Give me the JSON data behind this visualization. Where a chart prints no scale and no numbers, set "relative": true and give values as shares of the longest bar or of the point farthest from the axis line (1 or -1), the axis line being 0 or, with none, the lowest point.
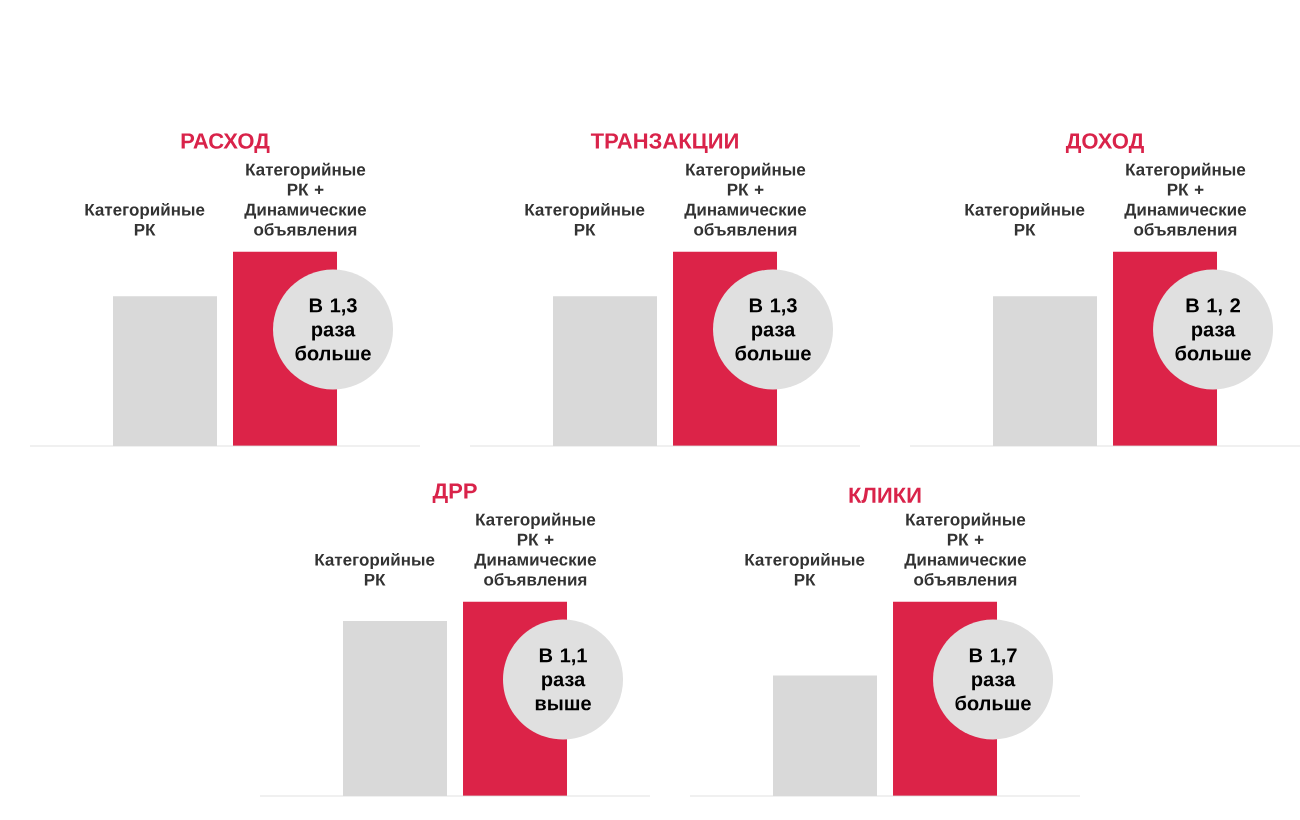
{
  "chart_data": [
    {
      "type": "bar",
      "title": "РАСХОД",
      "categories": [
        "Категорийные РК",
        "Категорийные РК + Динамические объявления"
      ],
      "values": [
        0.77,
        1
      ],
      "colors": [
        "#d9d9d9",
        "#dc2348"
      ],
      "relative": true,
      "annotations": [
        "В 1,3 раза больше"
      ]
    },
    {
      "type": "bar",
      "title": "ТРАНЗАКЦИИ",
      "categories": [
        "Категорийные РК",
        "Категорийные РК + Динамические объявления"
      ],
      "values": [
        0.77,
        1
      ],
      "colors": [
        "#d9d9d9",
        "#dc2348"
      ],
      "relative": true,
      "annotations": [
        "В 1,3 раза больше"
      ]
    },
    {
      "type": "bar",
      "title": "ДОХОД",
      "categories": [
        "Категорийные РК",
        "Категорийные РК + Динамические объявления"
      ],
      "values": [
        0.77,
        1
      ],
      "colors": [
        "#d9d9d9",
        "#dc2348"
      ],
      "relative": true,
      "annotations": [
        "В 1, 2 раза больше"
      ]
    },
    {
      "type": "bar",
      "title": "ДРР",
      "categories": [
        "Категорийные РК",
        "Категорийные РК + Динамические объявления"
      ],
      "values": [
        0.9,
        1
      ],
      "colors": [
        "#d9d9d9",
        "#dc2348"
      ],
      "relative": true,
      "annotations": [
        "В 1,1 раза выше"
      ]
    },
    {
      "type": "bar",
      "title": "КЛИКИ",
      "categories": [
        "Категорийные РК",
        "Категорийные РК + Динамические объявления"
      ],
      "values": [
        0.62,
        1
      ],
      "colors": [
        "#d9d9d9",
        "#dc2348"
      ],
      "relative": true,
      "annotations": [
        "В 1,7 раза больше"
      ]
    }
  ]
}
